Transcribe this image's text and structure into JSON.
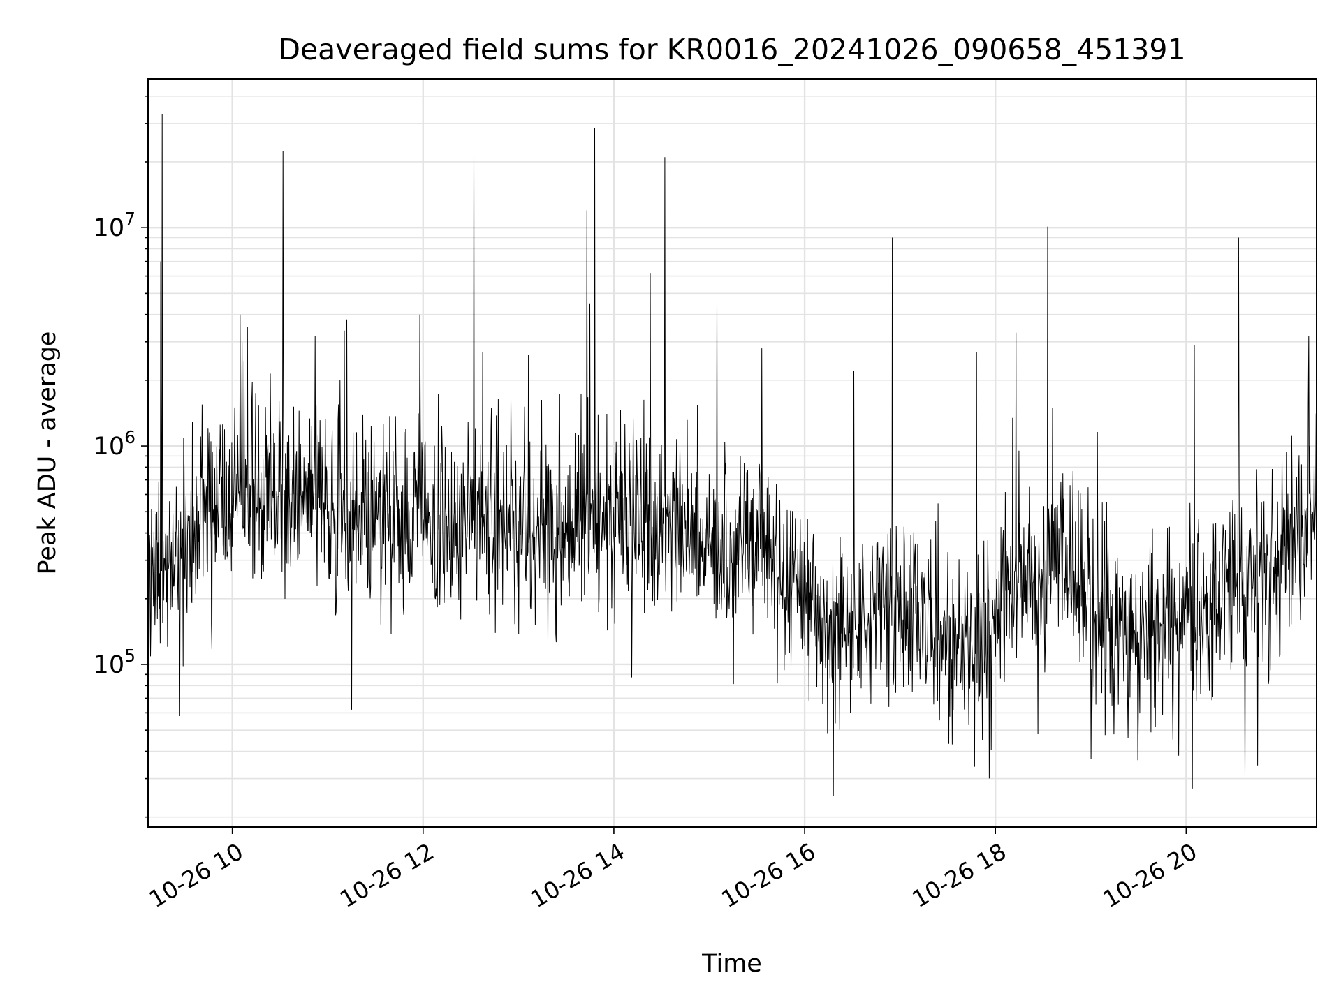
{
  "chart_data": {
    "type": "line",
    "title": "Deaveraged field sums for KR0016_20241026_090658_451391",
    "xlabel": "Time",
    "ylabel": "Peak ADU - average",
    "yscale": "log",
    "grid": true,
    "legend": "none",
    "line_color": "#000000",
    "grid_color": "#e3e3e3",
    "xlim": [
      "2024-10-26 09:07",
      "2024-10-26 21:22"
    ],
    "ylim": [
      18000,
      48000000
    ],
    "x_ticks": [
      {
        "value": "2024-10-26 10:00",
        "label": "10-26 10"
      },
      {
        "value": "2024-10-26 12:00",
        "label": "10-26 12"
      },
      {
        "value": "2024-10-26 14:00",
        "label": "10-26 14"
      },
      {
        "value": "2024-10-26 16:00",
        "label": "10-26 16"
      },
      {
        "value": "2024-10-26 18:00",
        "label": "10-26 18"
      },
      {
        "value": "2024-10-26 20:00",
        "label": "10-26 20"
      }
    ],
    "y_ticks": [
      {
        "value": 100000,
        "base": "10",
        "exp": "5"
      },
      {
        "value": 1000000,
        "base": "10",
        "exp": "6"
      },
      {
        "value": 10000000,
        "base": "10",
        "exp": "7"
      }
    ],
    "spikes": [
      {
        "x": "2024-10-26 09:16",
        "y": 33000000
      },
      {
        "x": "2024-10-26 09:15",
        "y": 7000000
      },
      {
        "x": "2024-10-26 10:05",
        "y": 4000000
      },
      {
        "x": "2024-10-26 10:32",
        "y": 22500000
      },
      {
        "x": "2024-10-26 11:12",
        "y": 3800000
      },
      {
        "x": "2024-10-26 11:58",
        "y": 4000000
      },
      {
        "x": "2024-10-26 12:32",
        "y": 21500000
      },
      {
        "x": "2024-10-26 13:43",
        "y": 12000000
      },
      {
        "x": "2024-10-26 13:45",
        "y": 4500000
      },
      {
        "x": "2024-10-26 13:48",
        "y": 28500000
      },
      {
        "x": "2024-10-26 14:23",
        "y": 6200000
      },
      {
        "x": "2024-10-26 14:32",
        "y": 21000000
      },
      {
        "x": "2024-10-26 15:05",
        "y": 4500000
      },
      {
        "x": "2024-10-26 15:33",
        "y": 2800000
      },
      {
        "x": "2024-10-26 16:31",
        "y": 2200000
      },
      {
        "x": "2024-10-26 16:55",
        "y": 9000000
      },
      {
        "x": "2024-10-26 17:48",
        "y": 2700000
      },
      {
        "x": "2024-10-26 18:13",
        "y": 3300000
      },
      {
        "x": "2024-10-26 18:33",
        "y": 10100000
      },
      {
        "x": "2024-10-26 20:05",
        "y": 2900000
      },
      {
        "x": "2024-10-26 20:33",
        "y": 9000000
      },
      {
        "x": "2024-10-26 21:17",
        "y": 3200000
      }
    ],
    "dips": [
      {
        "x": "2024-10-26 09:27",
        "y": 58000
      },
      {
        "x": "2024-10-26 11:15",
        "y": 62000
      },
      {
        "x": "2024-10-26 16:18",
        "y": 25000
      },
      {
        "x": "2024-10-26 17:47",
        "y": 34000
      },
      {
        "x": "2024-10-26 19:00",
        "y": 37000
      },
      {
        "x": "2024-10-26 20:04",
        "y": 27000
      },
      {
        "x": "2024-10-26 20:37",
        "y": 31000
      }
    ],
    "baseline_trend": [
      {
        "x": "2024-10-26 09:07",
        "y": 300000
      },
      {
        "x": "2024-10-26 09:30",
        "y": 280000
      },
      {
        "x": "2024-10-26 09:40",
        "y": 450000
      },
      {
        "x": "2024-10-26 10:30",
        "y": 600000
      },
      {
        "x": "2024-10-26 11:15",
        "y": 450000
      },
      {
        "x": "2024-10-26 12:30",
        "y": 500000
      },
      {
        "x": "2024-10-26 13:30",
        "y": 430000
      },
      {
        "x": "2024-10-26 14:30",
        "y": 430000
      },
      {
        "x": "2024-10-26 15:30",
        "y": 350000
      },
      {
        "x": "2024-10-26 15:50",
        "y": 250000
      },
      {
        "x": "2024-10-26 16:15",
        "y": 140000
      },
      {
        "x": "2024-10-26 16:40",
        "y": 180000
      },
      {
        "x": "2024-10-26 17:00",
        "y": 210000
      },
      {
        "x": "2024-10-26 17:30",
        "y": 120000
      },
      {
        "x": "2024-10-26 17:50",
        "y": 130000
      },
      {
        "x": "2024-10-26 18:15",
        "y": 250000
      },
      {
        "x": "2024-10-26 18:45",
        "y": 280000
      },
      {
        "x": "2024-10-26 19:10",
        "y": 140000
      },
      {
        "x": "2024-10-26 19:40",
        "y": 140000
      },
      {
        "x": "2024-10-26 20:15",
        "y": 200000
      },
      {
        "x": "2024-10-26 20:45",
        "y": 250000
      },
      {
        "x": "2024-10-26 21:10",
        "y": 350000
      },
      {
        "x": "2024-10-26 21:22",
        "y": 500000
      }
    ]
  }
}
